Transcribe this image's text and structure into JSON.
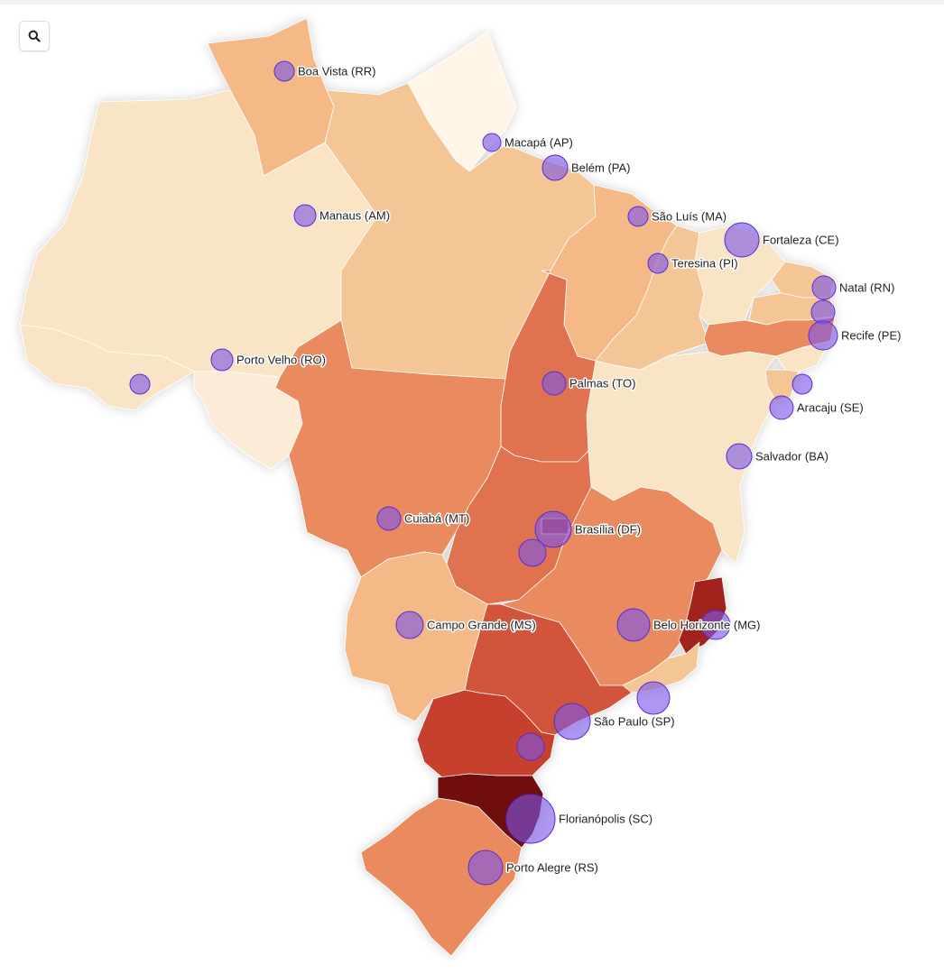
{
  "search_button": {
    "icon": "magnifier"
  },
  "colors": {
    "bubble_fill": "#7b57e6",
    "bubble_stroke": "#5a2bd6",
    "state_border": "#ffffff",
    "scale": [
      "#fff6e8",
      "#f9e4c6",
      "#f4c695",
      "#ea8a5e",
      "#e07250",
      "#c73f2e",
      "#a2231c",
      "#701010"
    ]
  },
  "cities": [
    {
      "label": "Boa Vista (RR)",
      "labeled": true
    },
    {
      "label": "Macapá (AP)",
      "labeled": true
    },
    {
      "label": "Belém (PA)",
      "labeled": true
    },
    {
      "label": "Manaus (AM)",
      "labeled": true
    },
    {
      "label": "São Luís (MA)",
      "labeled": true
    },
    {
      "label": "Fortaleza (CE)",
      "labeled": true
    },
    {
      "label": "Teresina (PI)",
      "labeled": true
    },
    {
      "label": "Natal (RN)",
      "labeled": true
    },
    {
      "label": "",
      "labeled": false
    },
    {
      "label": "Recife (PE)",
      "labeled": true
    },
    {
      "label": "",
      "labeled": false
    },
    {
      "label": "Porto Velho (RO)",
      "labeled": true
    },
    {
      "label": "",
      "labeled": false
    },
    {
      "label": "Palmas (TO)",
      "labeled": true
    },
    {
      "label": "Aracaju (SE)",
      "labeled": true
    },
    {
      "label": "Salvador (BA)",
      "labeled": true
    },
    {
      "label": "Cuiabá (MT)",
      "labeled": true
    },
    {
      "label": "Brasília (DF)",
      "labeled": true
    },
    {
      "label": "",
      "labeled": false
    },
    {
      "label": "Campo Grande (MS)",
      "labeled": true
    },
    {
      "label": "Belo Horizonte (MG)",
      "labeled": true
    },
    {
      "label": "",
      "labeled": false
    },
    {
      "label": "",
      "labeled": false
    },
    {
      "label": "São Paulo (SP)",
      "labeled": true
    },
    {
      "label": "",
      "labeled": false
    },
    {
      "label": "Florianópolis (SC)",
      "labeled": true
    },
    {
      "label": "Porto Alegre (RS)",
      "labeled": true
    }
  ]
}
